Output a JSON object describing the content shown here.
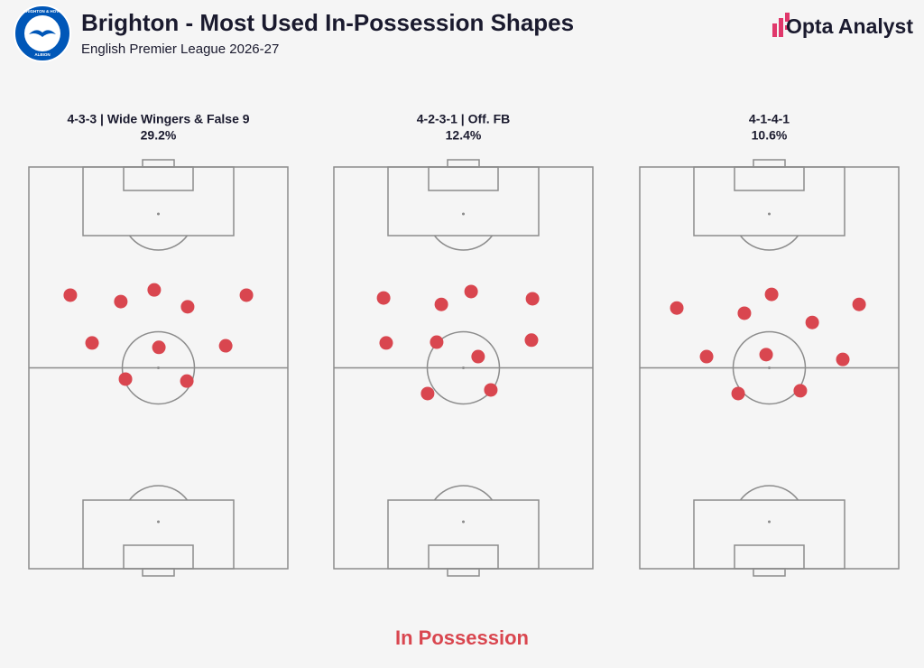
{
  "header": {
    "title": "Brighton - Most Used In-Possession Shapes",
    "subtitle": "English Premier League 2026-27",
    "brand": "Opta Analyst",
    "logo_top": "BRIGHTON & HOVE",
    "logo_bottom": "ALBION"
  },
  "chart_data": [
    {
      "type": "scatter",
      "title": "4-3-3 | Wide Wingers & False 9",
      "subtitle": "29.2%",
      "color": "#d9464f",
      "xlim": [
        0,
        100
      ],
      "ylim": [
        0,
        100
      ],
      "x": [
        16.0,
        35.5,
        48.4,
        61.3,
        84.0,
        24.4,
        50.2,
        76.0,
        37.3,
        61.0
      ],
      "y": [
        68.1,
        66.5,
        69.4,
        65.2,
        68.1,
        56.2,
        55.1,
        55.5,
        47.2,
        46.7
      ]
    },
    {
      "type": "scatter",
      "title": "4-2-3-1 | Off. FB",
      "subtitle": "12.4%",
      "color": "#d9464f",
      "xlim": [
        0,
        100
      ],
      "ylim": [
        0,
        100
      ],
      "x": [
        19.2,
        41.5,
        53.0,
        76.7,
        20.2,
        39.7,
        55.7,
        76.3,
        36.2,
        60.6
      ],
      "y": [
        67.4,
        65.8,
        69.0,
        67.2,
        56.2,
        56.4,
        52.8,
        56.9,
        43.6,
        44.5
      ]
    },
    {
      "type": "scatter",
      "title": "4-1-4-1",
      "subtitle": "10.6%",
      "color": "#d9464f",
      "xlim": [
        0,
        100
      ],
      "ylim": [
        0,
        100
      ],
      "x": [
        14.3,
        40.4,
        50.9,
        66.6,
        84.7,
        25.8,
        48.8,
        78.4,
        38.0,
        62.0
      ],
      "y": [
        64.9,
        63.6,
        68.3,
        61.3,
        65.8,
        52.8,
        53.3,
        52.1,
        43.6,
        44.3
      ]
    }
  ],
  "footer": "In Possession"
}
